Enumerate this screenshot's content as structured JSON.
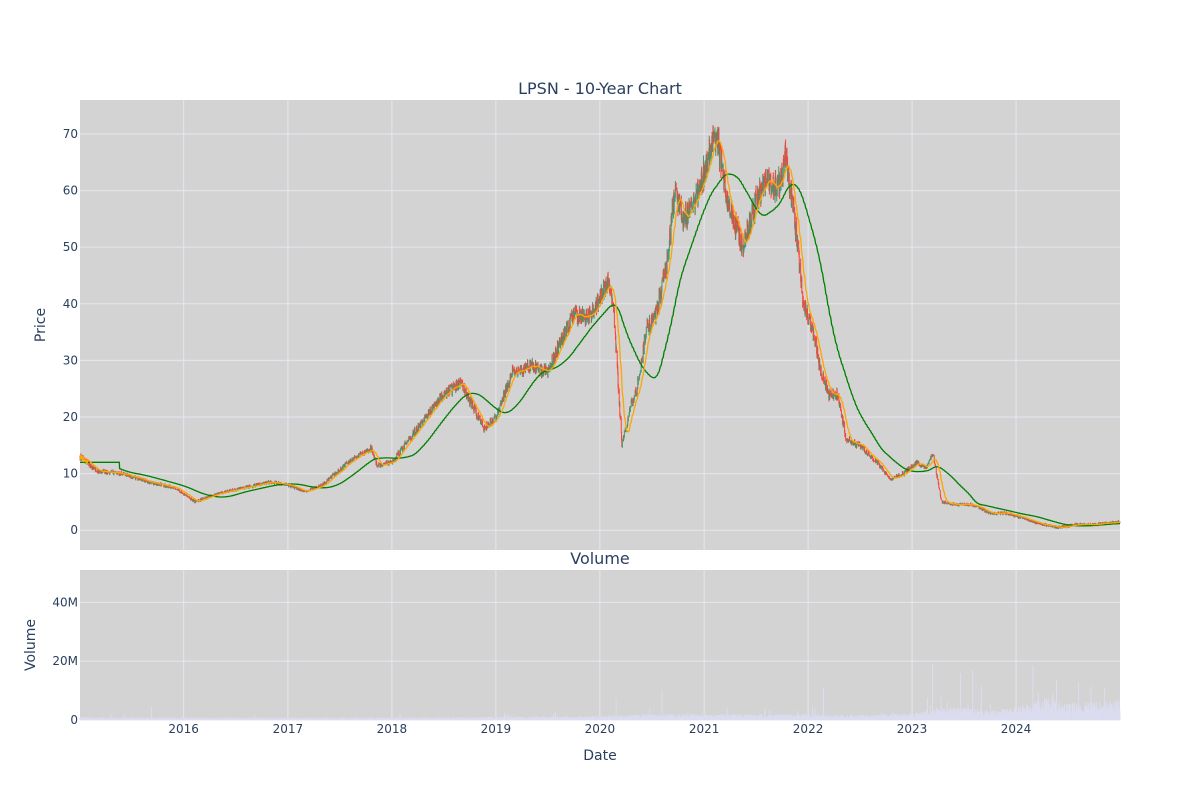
{
  "colors": {
    "plot_bg": "#d3d3d3",
    "grid": "#e6e6f0",
    "candle_up": "#3d9970",
    "candle_down": "#ff4136",
    "ma_short": "#ffa500",
    "ma_long": "#008000",
    "volume_bar": "#dcdcf0",
    "text": "#2a3f5f"
  },
  "chart_data": [
    {
      "type": "candlestick",
      "title": "LPSN - 10-Year Chart",
      "xlabel": "",
      "ylabel": "Price",
      "ylim": [
        -3.5,
        76
      ],
      "yticks": [
        0,
        10,
        20,
        30,
        40,
        50,
        60,
        70
      ],
      "xlim": [
        "2015-01-02",
        "2024-12-31"
      ],
      "grid": true,
      "series": [
        {
          "kind": "price"
        },
        {
          "kind": "ma_short"
        },
        {
          "kind": "ma_long"
        }
      ],
      "price_anchors": {
        "dates": [
          "2015-01-02",
          "2015-03-01",
          "2015-06-01",
          "2015-09-01",
          "2015-12-01",
          "2016-02-10",
          "2016-05-01",
          "2016-08-01",
          "2016-11-01",
          "2017-01-01",
          "2017-03-01",
          "2017-05-01",
          "2017-08-01",
          "2017-10-20",
          "2017-11-10",
          "2018-01-01",
          "2018-03-01",
          "2018-05-01",
          "2018-07-01",
          "2018-09-01",
          "2018-11-20",
          "2019-01-01",
          "2019-03-01",
          "2019-05-01",
          "2019-07-01",
          "2019-08-15",
          "2019-10-01",
          "2019-12-01",
          "2020-02-01",
          "2020-02-20",
          "2020-03-18",
          "2020-04-20",
          "2020-05-10",
          "2020-06-15",
          "2020-07-15",
          "2020-08-20",
          "2020-09-20",
          "2020-10-20",
          "2020-12-01",
          "2021-01-15",
          "2021-02-15",
          "2021-03-15",
          "2021-04-15",
          "2021-05-15",
          "2021-07-01",
          "2021-08-15",
          "2021-09-15",
          "2021-10-15",
          "2021-11-15",
          "2021-12-15",
          "2022-01-15",
          "2022-02-15",
          "2022-03-15",
          "2022-04-15",
          "2022-05-15",
          "2022-07-01",
          "2022-09-01",
          "2022-10-15",
          "2022-12-01",
          "2023-01-15",
          "2023-02-20",
          "2023-03-15",
          "2023-04-15",
          "2023-06-01",
          "2023-08-01",
          "2023-10-01",
          "2023-12-01",
          "2024-02-01",
          "2024-04-01",
          "2024-06-01",
          "2024-08-01",
          "2024-10-01",
          "2024-12-31"
        ],
        "close": [
          13,
          10.5,
          10,
          8.5,
          7.5,
          5,
          6.5,
          7.5,
          8.5,
          8,
          6.8,
          8,
          12,
          14.5,
          11.5,
          12,
          16,
          20,
          24,
          26,
          18,
          20,
          28,
          29,
          28,
          33,
          38,
          38,
          44,
          38,
          15,
          22,
          25,
          36,
          38,
          46,
          60,
          55,
          58,
          66,
          70,
          60,
          55,
          50,
          58,
          62,
          60,
          66,
          55,
          40,
          36,
          28,
          24,
          24,
          16,
          15,
          12,
          9,
          10,
          12,
          11,
          13.5,
          5,
          4.5,
          4.5,
          3,
          3,
          2,
          1,
          0.5,
          1,
          1,
          1.5
        ]
      }
    },
    {
      "type": "bar",
      "title": "Volume",
      "xlabel": "Date",
      "ylabel": "Volume",
      "ylim": [
        0,
        51000000
      ],
      "yticks": [
        0,
        20000000,
        40000000
      ],
      "ytick_labels": [
        "0",
        "20M",
        "40M"
      ],
      "x_tick_labels": [
        "2016",
        "2017",
        "2018",
        "2019",
        "2020",
        "2021",
        "2022",
        "2023",
        "2024"
      ],
      "grid": true,
      "volume_anchors": {
        "dates": [
          "2015-01-02",
          "2016-01-01",
          "2018-01-01",
          "2019-06-01",
          "2020-02-01",
          "2020-06-01",
          "2021-01-01",
          "2022-01-01",
          "2022-06-01",
          "2023-01-01",
          "2023-04-01",
          "2023-07-01",
          "2023-10-01",
          "2024-01-01",
          "2024-04-01",
          "2024-07-01",
          "2024-12-31"
        ],
        "base": [
          600000,
          500000,
          500000,
          700000,
          900000,
          1200000,
          1200000,
          1200000,
          1000000,
          1300000,
          2500000,
          2500000,
          2000000,
          2500000,
          4500000,
          3500000,
          4000000
        ]
      }
    }
  ]
}
